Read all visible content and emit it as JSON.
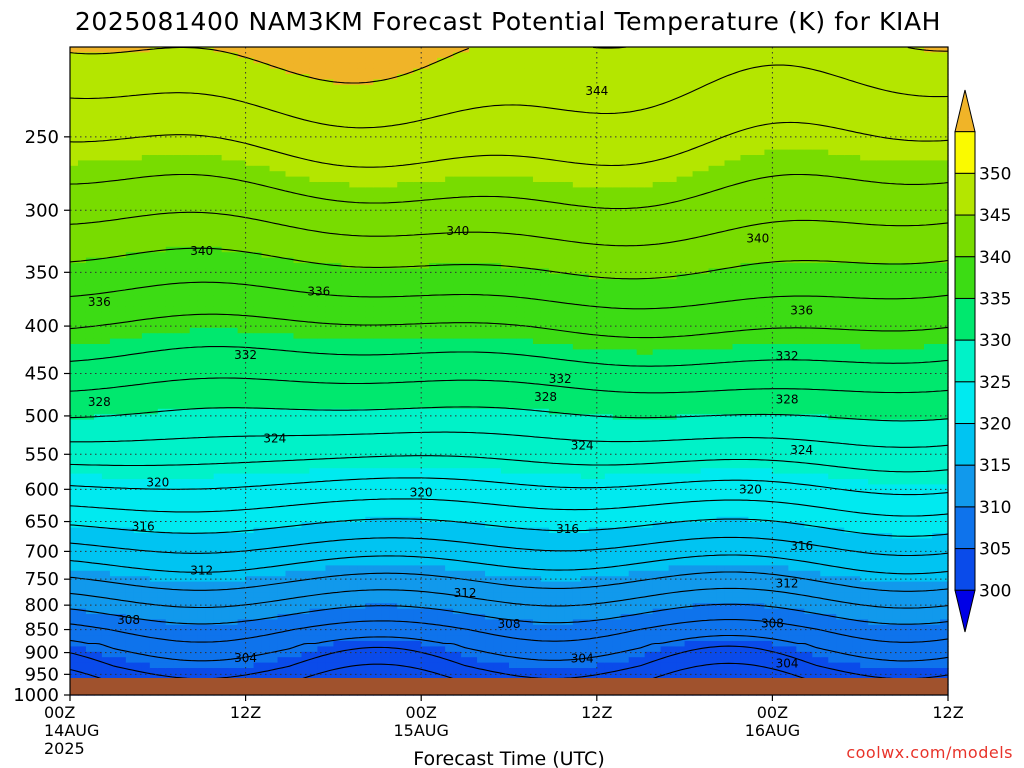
{
  "chart_data": {
    "type": "heatmap",
    "title": "2025081400 NAM3KM Forecast Potential Temperature (K) for KIAH",
    "xlabel": "Forecast Time (UTC)",
    "ylabel": "",
    "x_ticks": [
      {
        "hour": 0,
        "lines": [
          "00Z",
          "14AUG",
          "2025"
        ]
      },
      {
        "hour": 12,
        "lines": [
          "12Z"
        ]
      },
      {
        "hour": 24,
        "lines": [
          "00Z",
          "15AUG"
        ]
      },
      {
        "hour": 36,
        "lines": [
          "12Z"
        ]
      },
      {
        "hour": 48,
        "lines": [
          "00Z",
          "16AUG"
        ]
      },
      {
        "hour": 60,
        "lines": [
          "12Z"
        ]
      }
    ],
    "xlim": [
      0,
      60
    ],
    "y_ticks": [
      250,
      300,
      350,
      400,
      450,
      500,
      550,
      600,
      650,
      700,
      750,
      800,
      850,
      900,
      950,
      1000
    ],
    "ylim": [
      1000,
      200
    ],
    "y_scale": "log-pressure",
    "grid": true,
    "surface_color": "#a0522d",
    "colorbar": {
      "levels": [
        300,
        305,
        310,
        315,
        320,
        325,
        330,
        335,
        340,
        345,
        350
      ],
      "colors": [
        "#0000e6",
        "#0a4bea",
        "#0e73ec",
        "#1199ec",
        "#00c4f2",
        "#00eaf0",
        "#00f2c8",
        "#00e86e",
        "#3cdc14",
        "#78dc00",
        "#b4e600",
        "#fafa00",
        "#f0b428"
      ],
      "extend": "both"
    },
    "contour_labels": [
      {
        "value": "344",
        "hour": 36,
        "p": 223
      },
      {
        "value": "340",
        "hour": 9,
        "p": 332
      },
      {
        "value": "340",
        "hour": 26.5,
        "p": 316
      },
      {
        "value": "340",
        "hour": 47,
        "p": 322
      },
      {
        "value": "336",
        "hour": 2,
        "p": 377
      },
      {
        "value": "336",
        "hour": 17,
        "p": 367
      },
      {
        "value": "336",
        "hour": 50,
        "p": 385
      },
      {
        "value": "332",
        "hour": 12,
        "p": 430
      },
      {
        "value": "332",
        "hour": 33.5,
        "p": 456
      },
      {
        "value": "332",
        "hour": 49,
        "p": 431
      },
      {
        "value": "328",
        "hour": 2,
        "p": 483
      },
      {
        "value": "328",
        "hour": 32.5,
        "p": 477
      },
      {
        "value": "328",
        "hour": 49,
        "p": 480
      },
      {
        "value": "324",
        "hour": 14,
        "p": 529
      },
      {
        "value": "324",
        "hour": 35,
        "p": 538
      },
      {
        "value": "324",
        "hour": 50,
        "p": 544
      },
      {
        "value": "320",
        "hour": 6,
        "p": 590
      },
      {
        "value": "320",
        "hour": 24,
        "p": 605
      },
      {
        "value": "320",
        "hour": 46.5,
        "p": 600
      },
      {
        "value": "316",
        "hour": 5,
        "p": 658
      },
      {
        "value": "316",
        "hour": 34,
        "p": 662
      },
      {
        "value": "316",
        "hour": 50,
        "p": 691
      },
      {
        "value": "312",
        "hour": 9,
        "p": 734
      },
      {
        "value": "312",
        "hour": 27,
        "p": 776
      },
      {
        "value": "312",
        "hour": 49,
        "p": 758
      },
      {
        "value": "308",
        "hour": 4,
        "p": 830
      },
      {
        "value": "308",
        "hour": 30,
        "p": 838
      },
      {
        "value": "308",
        "hour": 48,
        "p": 837
      },
      {
        "value": "304",
        "hour": 12,
        "p": 912
      },
      {
        "value": "304",
        "hour": 35,
        "p": 913
      },
      {
        "value": "304",
        "hour": 49,
        "p": 925
      }
    ]
  },
  "footer": {
    "credit": "coolwx.com/models"
  }
}
